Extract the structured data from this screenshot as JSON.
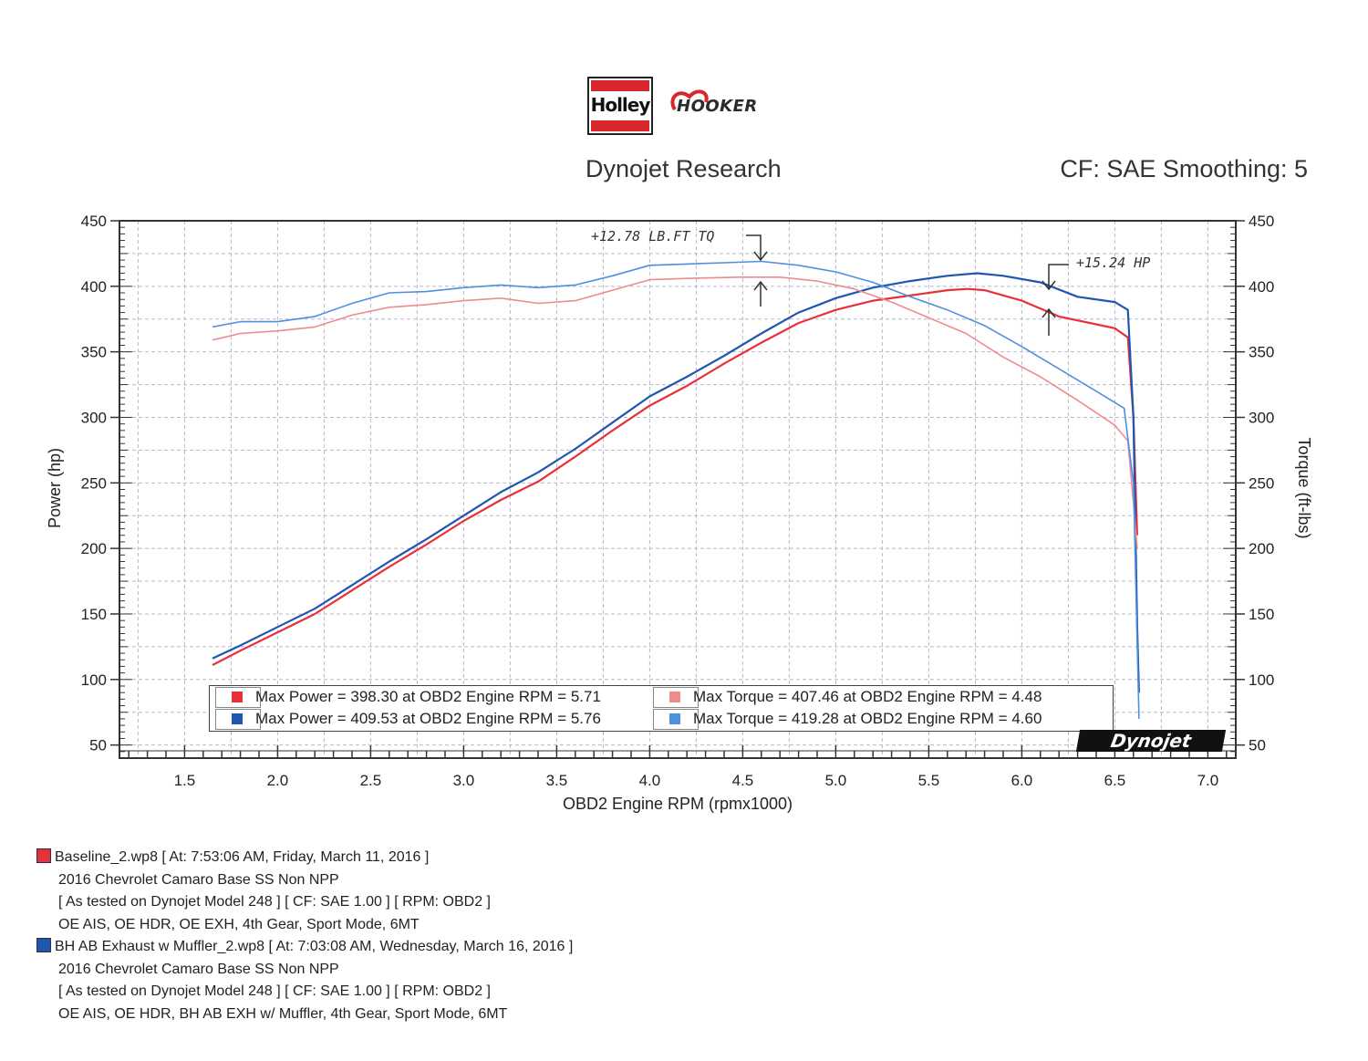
{
  "header": {
    "brand_logo": "Holley",
    "partner_logo": "HOOKER",
    "title": "Dynojet Research",
    "settings": "CF: SAE Smoothing: 5"
  },
  "annotations": {
    "torque_gain": "+12.78 LB.FT TQ",
    "power_gain": "+15.24 HP"
  },
  "badge": "Dynojet",
  "legend": [
    {
      "color": "#e8303a",
      "text": "Max Power = 398.30 at OBD2 Engine RPM = 5.71"
    },
    {
      "color": "#1f56b0",
      "text": "Max Power = 409.53 at OBD2 Engine RPM = 5.76"
    },
    {
      "color": "#f08a8f",
      "text": "Max Torque = 407.46 at OBD2 Engine RPM = 4.48"
    },
    {
      "color": "#4f8fe0",
      "text": "Max Torque = 419.28 at OBD2 Engine RPM = 4.60"
    }
  ],
  "runs": [
    {
      "color": "#e8303a",
      "line1": "Baseline_2.wp8 [ At: 7:53:06 AM, Friday, March 11, 2016 ]",
      "line2": "2016 Chevrolet Camaro Base SS Non NPP",
      "line3": "[ As tested on Dynojet Model 248 ]   [ CF: SAE 1.00 ]   [ RPM: OBD2 ]",
      "line4": "OE AIS, OE HDR, OE EXH, 4th Gear, Sport Mode, 6MT"
    },
    {
      "color": "#1f56b0",
      "line1": "BH AB Exhaust w Muffler_2.wp8 [ At: 7:03:08 AM, Wednesday, March 16, 2016 ]",
      "line2": "2016 Chevrolet Camaro Base SS Non NPP",
      "line3": "[ As tested on Dynojet Model 248 ]   [ CF: SAE 1.00 ]   [ RPM: OBD2 ]",
      "line4": "OE AIS, OE HDR, BH AB EXH w/ Muffler, 4th Gear, Sport Mode, 6MT"
    }
  ],
  "chart_data": {
    "type": "line",
    "title": "Dynojet Research",
    "xlabel": "OBD2 Engine RPM (rpmx1000)",
    "ylabel": "Power (hp)",
    "y2label": "Torque (ft-lbs)",
    "xlim": [
      1.15,
      7.15
    ],
    "ylim": [
      40,
      450
    ],
    "x_ticks": [
      "1.5",
      "2.0",
      "2.5",
      "3.0",
      "3.5",
      "4.0",
      "4.5",
      "5.0",
      "5.5",
      "6.0",
      "6.5",
      "7.0"
    ],
    "y_ticks": [
      "50",
      "100",
      "150",
      "200",
      "250",
      "300",
      "350",
      "400",
      "450"
    ],
    "grid": true,
    "series": [
      {
        "name": "Max Power = 398.30 at OBD2 Engine RPM = 5.71",
        "color": "#e8303a",
        "axis": "left",
        "points": [
          [
            1.65,
            111
          ],
          [
            1.8,
            122
          ],
          [
            2.0,
            136
          ],
          [
            2.2,
            150
          ],
          [
            2.4,
            168
          ],
          [
            2.6,
            186
          ],
          [
            2.8,
            203
          ],
          [
            3.0,
            221
          ],
          [
            3.2,
            237
          ],
          [
            3.4,
            251
          ],
          [
            3.6,
            270
          ],
          [
            3.8,
            290
          ],
          [
            4.0,
            309
          ],
          [
            4.2,
            324
          ],
          [
            4.4,
            341
          ],
          [
            4.6,
            357
          ],
          [
            4.8,
            372
          ],
          [
            5.0,
            382
          ],
          [
            5.2,
            389
          ],
          [
            5.4,
            393
          ],
          [
            5.6,
            397
          ],
          [
            5.71,
            398
          ],
          [
            5.8,
            397
          ],
          [
            6.0,
            389
          ],
          [
            6.2,
            377
          ],
          [
            6.4,
            371
          ],
          [
            6.5,
            368
          ],
          [
            6.57,
            361
          ],
          [
            6.6,
            300
          ],
          [
            6.62,
            210
          ]
        ]
      },
      {
        "name": "Max Power = 409.53 at OBD2 Engine RPM = 5.76",
        "color": "#1f56b0",
        "axis": "left",
        "points": [
          [
            1.65,
            116
          ],
          [
            1.8,
            126
          ],
          [
            2.0,
            140
          ],
          [
            2.2,
            154
          ],
          [
            2.4,
            172
          ],
          [
            2.6,
            190
          ],
          [
            2.8,
            207
          ],
          [
            3.0,
            225
          ],
          [
            3.2,
            243
          ],
          [
            3.4,
            258
          ],
          [
            3.6,
            276
          ],
          [
            3.8,
            296
          ],
          [
            4.0,
            316
          ],
          [
            4.2,
            331
          ],
          [
            4.4,
            347
          ],
          [
            4.6,
            364
          ],
          [
            4.8,
            380
          ],
          [
            5.0,
            391
          ],
          [
            5.2,
            399
          ],
          [
            5.4,
            404
          ],
          [
            5.6,
            408
          ],
          [
            5.76,
            410
          ],
          [
            5.9,
            408
          ],
          [
            6.1,
            403
          ],
          [
            6.3,
            392
          ],
          [
            6.5,
            388
          ],
          [
            6.57,
            382
          ],
          [
            6.6,
            300
          ],
          [
            6.62,
            140
          ],
          [
            6.63,
            90
          ]
        ]
      },
      {
        "name": "Max Torque = 407.46 at OBD2 Engine RPM = 4.48",
        "color": "#f08a8f",
        "axis": "right",
        "points": [
          [
            1.65,
            359
          ],
          [
            1.8,
            364
          ],
          [
            2.0,
            366
          ],
          [
            2.2,
            369
          ],
          [
            2.4,
            378
          ],
          [
            2.6,
            384
          ],
          [
            2.8,
            386
          ],
          [
            3.0,
            389
          ],
          [
            3.2,
            391
          ],
          [
            3.4,
            387
          ],
          [
            3.6,
            389
          ],
          [
            3.8,
            397
          ],
          [
            4.0,
            405
          ],
          [
            4.2,
            406
          ],
          [
            4.48,
            407
          ],
          [
            4.7,
            407
          ],
          [
            4.9,
            404
          ],
          [
            5.1,
            398
          ],
          [
            5.3,
            388
          ],
          [
            5.5,
            376
          ],
          [
            5.7,
            364
          ],
          [
            5.9,
            346
          ],
          [
            6.1,
            331
          ],
          [
            6.3,
            313
          ],
          [
            6.5,
            294
          ],
          [
            6.57,
            282
          ],
          [
            6.6,
            235
          ],
          [
            6.62,
            200
          ]
        ]
      },
      {
        "name": "Max Torque = 419.28 at OBD2 Engine RPM = 4.60",
        "color": "#4f8fe0",
        "axis": "right",
        "points": [
          [
            1.65,
            369
          ],
          [
            1.8,
            373
          ],
          [
            2.0,
            373
          ],
          [
            2.2,
            377
          ],
          [
            2.4,
            387
          ],
          [
            2.6,
            395
          ],
          [
            2.8,
            396
          ],
          [
            3.0,
            399
          ],
          [
            3.2,
            401
          ],
          [
            3.4,
            399
          ],
          [
            3.6,
            401
          ],
          [
            3.8,
            408
          ],
          [
            4.0,
            416
          ],
          [
            4.2,
            417
          ],
          [
            4.4,
            418
          ],
          [
            4.6,
            419
          ],
          [
            4.8,
            416
          ],
          [
            5.0,
            411
          ],
          [
            5.2,
            403
          ],
          [
            5.4,
            392
          ],
          [
            5.6,
            382
          ],
          [
            5.8,
            370
          ],
          [
            6.0,
            354
          ],
          [
            6.2,
            337
          ],
          [
            6.4,
            320
          ],
          [
            6.55,
            307
          ],
          [
            6.6,
            250
          ],
          [
            6.63,
            70
          ]
        ]
      }
    ]
  }
}
